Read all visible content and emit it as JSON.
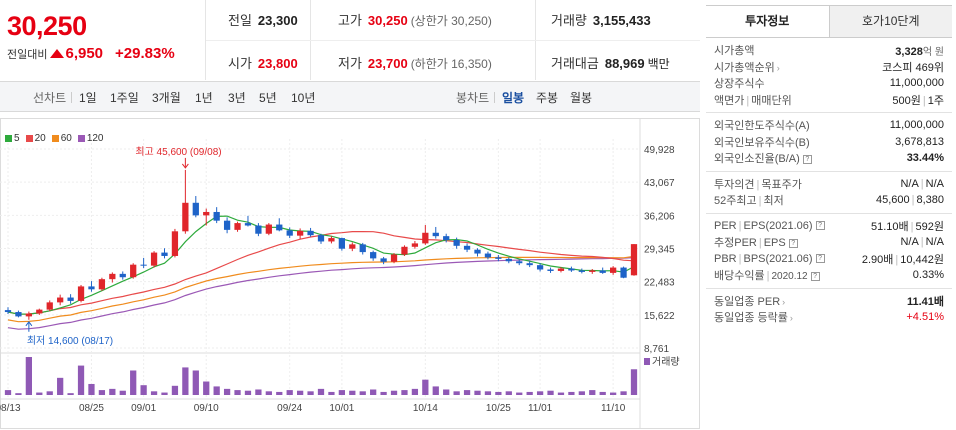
{
  "price": {
    "current": "30,250",
    "change_label": "전일대비",
    "change": "6,950",
    "change_pct": "+29.83%"
  },
  "stats": {
    "prev_label": "전일",
    "prev_value": "23,300",
    "high_label": "고가",
    "high_value": "30,250",
    "upper_limit": "(상한가 30,250)",
    "volume_label": "거래량",
    "volume_value": "3,155,433",
    "open_label": "시가",
    "open_value": "23,800",
    "low_label": "저가",
    "low_value": "23,700",
    "lower_limit": "(하한가 16,350)",
    "amount_label": "거래대금",
    "amount_value": "88,969",
    "amount_unit": "백만"
  },
  "period_bar": {
    "chart_label": "선차트",
    "periods": [
      "1일",
      "1주일",
      "3개월",
      "1년",
      "3년",
      "5년",
      "10년"
    ],
    "candle_label": "봉차트",
    "candles": [
      "일봉",
      "주봉",
      "월봉"
    ],
    "active_candle": "일봉"
  },
  "chart_data": {
    "type": "candlestick",
    "legend": [
      {
        "name": "5",
        "color": "#2eaa3c"
      },
      {
        "name": "20",
        "color": "#e84a4a"
      },
      {
        "name": "60",
        "color": "#f08c1e"
      },
      {
        "name": "120",
        "color": "#9b59b6"
      }
    ],
    "y_ticks": [
      "49,928",
      "43,067",
      "36,206",
      "29,345",
      "22,483",
      "15,622",
      "8,761"
    ],
    "y_tick_values": [
      49928,
      43067,
      36206,
      29345,
      22483,
      15622,
      8761
    ],
    "ylim": [
      8761,
      49928
    ],
    "x_ticks": [
      "08/13",
      "08/25",
      "09/01",
      "09/10",
      "09/24",
      "10/01",
      "10/14",
      "10/25",
      "11/01",
      "11/10"
    ],
    "x_tick_index": [
      0,
      8,
      13,
      19,
      27,
      32,
      40,
      47,
      51,
      58
    ],
    "max_annotation": "최고 45,600 (09/08)",
    "min_annotation": "최저 14,600 (08/17)",
    "volume_label": "거래량",
    "candles": [
      [
        16600,
        17200,
        15800,
        16200
      ],
      [
        16200,
        16500,
        15100,
        15300
      ],
      [
        15300,
        16300,
        14600,
        15900
      ],
      [
        15900,
        16900,
        15600,
        16700
      ],
      [
        16700,
        18600,
        16400,
        18200
      ],
      [
        18200,
        19800,
        17600,
        19200
      ],
      [
        19200,
        19900,
        17900,
        18500
      ],
      [
        18500,
        21800,
        18200,
        21500
      ],
      [
        21500,
        22600,
        20400,
        20900
      ],
      [
        20900,
        23300,
        20600,
        23000
      ],
      [
        23000,
        24400,
        22300,
        24100
      ],
      [
        24100,
        24600,
        22900,
        23400
      ],
      [
        23400,
        26300,
        23100,
        26000
      ],
      [
        26000,
        27400,
        25300,
        25800
      ],
      [
        25800,
        28800,
        25400,
        28500
      ],
      [
        28500,
        29400,
        27300,
        27800
      ],
      [
        27800,
        33400,
        27500,
        32900
      ],
      [
        32900,
        45600,
        32400,
        38800
      ],
      [
        38800,
        40200,
        35800,
        36200
      ],
      [
        36200,
        37600,
        34100,
        36900
      ],
      [
        36900,
        37900,
        34600,
        35100
      ],
      [
        35100,
        35800,
        32500,
        33200
      ],
      [
        33200,
        34900,
        32800,
        34600
      ],
      [
        34600,
        36100,
        33900,
        34100
      ],
      [
        34100,
        34600,
        31900,
        32400
      ],
      [
        32400,
        34600,
        32100,
        34300
      ],
      [
        34300,
        35600,
        32900,
        33100
      ],
      [
        33100,
        33700,
        31500,
        32000
      ],
      [
        32000,
        33500,
        31300,
        33000
      ],
      [
        33000,
        33600,
        31800,
        32100
      ],
      [
        32100,
        32400,
        30300,
        30800
      ],
      [
        30800,
        31900,
        30400,
        31500
      ],
      [
        31500,
        31600,
        28900,
        29300
      ],
      [
        29300,
        30600,
        28800,
        30200
      ],
      [
        30200,
        30500,
        28100,
        28600
      ],
      [
        28600,
        28900,
        26800,
        27300
      ],
      [
        27300,
        27600,
        26100,
        26600
      ],
      [
        26600,
        28400,
        26300,
        28100
      ],
      [
        28100,
        30000,
        27800,
        29700
      ],
      [
        29700,
        30900,
        29300,
        30400
      ],
      [
        30400,
        34200,
        30100,
        32600
      ],
      [
        32600,
        33800,
        31400,
        31900
      ],
      [
        31900,
        32400,
        30600,
        31100
      ],
      [
        31100,
        31600,
        29300,
        29900
      ],
      [
        29900,
        30400,
        28600,
        29100
      ],
      [
        29100,
        29400,
        27700,
        28300
      ],
      [
        28300,
        28700,
        27100,
        27500
      ],
      [
        27500,
        28000,
        26700,
        27200
      ],
      [
        27200,
        27500,
        26300,
        26700
      ],
      [
        26700,
        27000,
        25900,
        26300
      ],
      [
        26300,
        26700,
        25500,
        25900
      ],
      [
        25900,
        26300,
        24600,
        25000
      ],
      [
        25000,
        25400,
        24300,
        24700
      ],
      [
        24700,
        25500,
        24400,
        25200
      ],
      [
        25200,
        25600,
        24500,
        24800
      ],
      [
        24800,
        25200,
        24200,
        24500
      ],
      [
        24500,
        25100,
        24100,
        24800
      ],
      [
        24800,
        25400,
        24100,
        24300
      ],
      [
        24300,
        25700,
        23900,
        25400
      ],
      [
        25400,
        25600,
        23200,
        23300
      ],
      [
        23800,
        30250,
        23700,
        30250
      ]
    ],
    "volume": [
      8,
      3,
      62,
      4,
      6,
      28,
      3,
      48,
      18,
      8,
      10,
      7,
      40,
      16,
      6,
      4,
      15,
      45,
      40,
      22,
      14,
      10,
      8,
      7,
      9,
      6,
      5,
      8,
      7,
      6,
      10,
      5,
      8,
      7,
      6,
      9,
      5,
      7,
      8,
      10,
      25,
      14,
      9,
      6,
      8,
      7,
      6,
      5,
      6,
      4,
      5,
      6,
      7,
      4,
      5,
      6,
      8,
      5,
      4,
      6,
      42
    ]
  },
  "tabs": {
    "tab1": "투자정보",
    "tab2": "호가10단계"
  },
  "info": {
    "market_cap_label": "시가총액",
    "market_cap_value": "3,328",
    "market_cap_unit": "억 원",
    "market_cap_rank_label": "시가총액순위",
    "market_cap_rank_value": "코스피 469위",
    "shares_label": "상장주식수",
    "shares_value": "11,000,000",
    "par_label": "액면가",
    "trade_unit_label": "매매단위",
    "par_value": "500원",
    "trade_unit_value": "1주",
    "foreign_limit_label": "외국인한도주식수(A)",
    "foreign_limit_value": "11,000,000",
    "foreign_hold_label": "외국인보유주식수(B)",
    "foreign_hold_value": "3,678,813",
    "foreign_ratio_label": "외국인소진율(B/A)",
    "foreign_ratio_value": "33.44%",
    "opinion_label": "투자의견",
    "target_label": "목표주가",
    "opinion_value": "N/A",
    "target_value": "N/A",
    "week52_high_label": "52주최고",
    "week52_low_label": "최저",
    "week52_high_value": "45,600",
    "week52_low_value": "8,380",
    "per_label": "PER",
    "eps_label": "EPS(2021.06)",
    "per_value": "51.10배",
    "eps_value": "592원",
    "est_per_label": "추정PER",
    "est_eps_label": "EPS",
    "est_per_value": "N/A",
    "est_eps_value": "N/A",
    "pbr_label": "PBR",
    "bps_label": "BPS(2021.06)",
    "pbr_value": "2.90배",
    "bps_value": "10,442원",
    "dividend_label": "배당수익률",
    "dividend_date": "2020.12",
    "dividend_value": "0.33%",
    "industry_per_label": "동일업종 PER",
    "industry_per_value": "11.41배",
    "industry_change_label": "동일업종 등락률",
    "industry_change_value": "+4.51%"
  }
}
